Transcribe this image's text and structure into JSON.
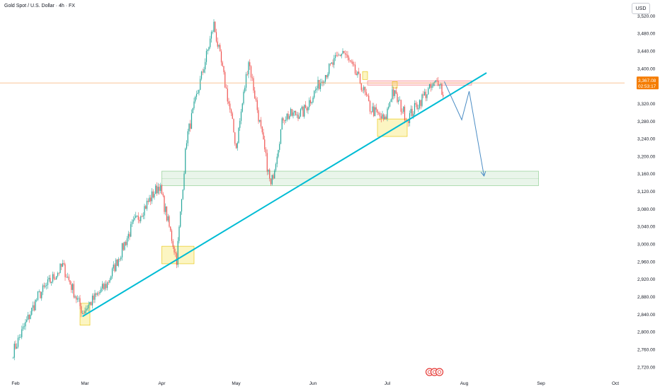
{
  "header": {
    "symbol_title": "Gold Spot / U.S. Dollar · 4h · FX",
    "currency_label": "USD"
  },
  "price_tag": {
    "price": "3,367.08",
    "countdown": "02:53:17"
  },
  "colors": {
    "up": "#26a69a",
    "down": "#ef5350",
    "trendline": "#00bcd4",
    "projection": "#4a8cc4",
    "current_price_line": "#f7a35c",
    "price_tag_bg": "#f57c00",
    "support_zone": "#4caf50",
    "resistance_zone": "#f23645",
    "highlight_box": "#f5e150"
  },
  "chart_data": {
    "type": "candlestick",
    "symbol": "XAUUSD",
    "timeframe": "4h",
    "x_labels": [
      "Feb",
      "Mar",
      "Apr",
      "May",
      "Jun",
      "Jul",
      "Aug",
      "Sep",
      "Oct"
    ],
    "y_ticks": [
      2720,
      2760,
      2800,
      2840,
      2880,
      2920,
      2960,
      3000,
      3040,
      3080,
      3120,
      3160,
      3200,
      3240,
      3280,
      3320,
      3360,
      3400,
      3440,
      3480,
      3520
    ],
    "y_tick_labels": [
      "2,720.00",
      "2,760.00",
      "2,800.00",
      "2,840.00",
      "2,880.00",
      "2,920.00",
      "2,960.00",
      "3,000.00",
      "3,040.00",
      "3,080.00",
      "3,120.00",
      "3,160.00",
      "3,200.00",
      "3,240.00",
      "3,280.00",
      "3,320.00",
      "3,360.00",
      "3,400.00",
      "3,440.00",
      "3,480.00",
      "3,520.00"
    ],
    "ylim": [
      2710,
      3535
    ],
    "current_price": 3367.08,
    "path_anchors": [
      [
        "2025-01-31",
        2755
      ],
      [
        "2025-02-10",
        2880
      ],
      [
        "2025-02-20",
        2950
      ],
      [
        "2025-02-28",
        2845
      ],
      [
        "2025-03-10",
        2910
      ],
      [
        "2025-03-20",
        3040
      ],
      [
        "2025-03-31",
        3135
      ],
      [
        "2025-04-07",
        2965
      ],
      [
        "2025-04-11",
        3240
      ],
      [
        "2025-04-22",
        3500
      ],
      [
        "2025-04-29",
        3290
      ],
      [
        "2025-05-01",
        3220
      ],
      [
        "2025-05-06",
        3420
      ],
      [
        "2025-05-15",
        3130
      ],
      [
        "2025-05-20",
        3290
      ],
      [
        "2025-05-28",
        3300
      ],
      [
        "2025-06-05",
        3380
      ],
      [
        "2025-06-13",
        3440
      ],
      [
        "2025-06-20",
        3370
      ],
      [
        "2025-06-24",
        3310
      ],
      [
        "2025-06-30",
        3280
      ],
      [
        "2025-07-03",
        3350
      ],
      [
        "2025-07-09",
        3285
      ],
      [
        "2025-07-16",
        3340
      ],
      [
        "2025-07-22",
        3375
      ],
      [
        "2025-07-24",
        3320
      ]
    ],
    "trendline": {
      "start": [
        "2025-02-28",
        2835
      ],
      "end": [
        "2025-08-10",
        3390
      ]
    },
    "projection": [
      [
        "2025-07-24",
        3370
      ],
      [
        "2025-07-31",
        3283
      ],
      [
        "2025-08-03",
        3348
      ],
      [
        "2025-08-09",
        3155
      ]
    ],
    "zones": [
      {
        "kind": "support",
        "x0": "2025-04-01",
        "x1": "2025-08-31",
        "y0": 3133,
        "y1": 3166
      },
      {
        "kind": "resistance",
        "x0": "2025-06-23",
        "x1": "2025-08-04",
        "y0": 3362,
        "y1": 3372
      }
    ],
    "highlight_boxes": [
      {
        "x0": "2025-02-27",
        "x1": "2025-03-03",
        "y0": 2815,
        "y1": 2865
      },
      {
        "x0": "2025-04-01",
        "x1": "2025-04-14",
        "y0": 2955,
        "y1": 2995
      },
      {
        "x0": "2025-06-27",
        "x1": "2025-07-09",
        "y0": 3245,
        "y1": 3285
      },
      {
        "x0": "2025-06-21",
        "x1": "2025-06-23",
        "y0": 3375,
        "y1": 3393
      },
      {
        "x0": "2025-07-03",
        "x1": "2025-07-05",
        "y0": 3355,
        "y1": 3370
      }
    ]
  }
}
